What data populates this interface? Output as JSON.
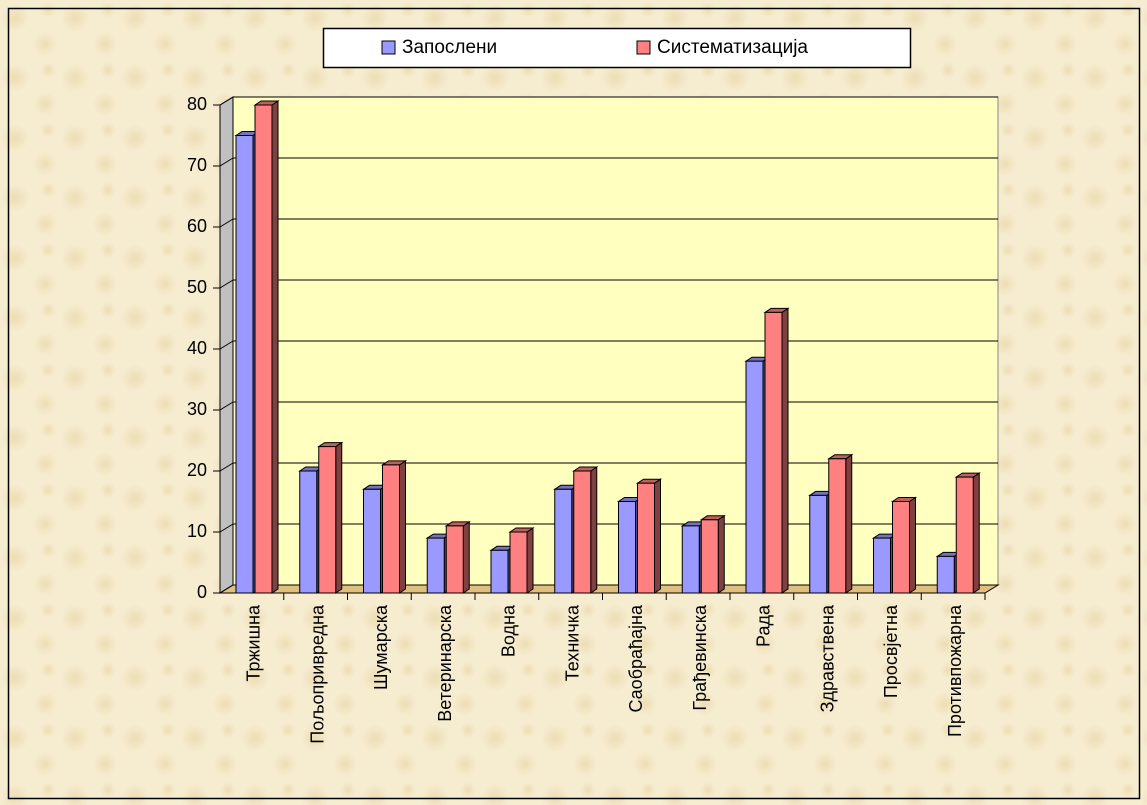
{
  "chart_data": {
    "type": "bar",
    "categories": [
      "Тржишна",
      "Пољопривредна",
      "Шумарска",
      "Ветеринарска",
      "Водна",
      "Техничка",
      "Саобраћајна",
      "Грађевинска",
      "Рада",
      "Здравствена",
      "Просвјетна",
      "Противпожарна"
    ],
    "series": [
      {
        "name": "Запослени",
        "color": "#9999ff",
        "values": [
          75,
          20,
          17,
          9,
          7,
          17,
          15,
          11,
          38,
          16,
          9,
          6
        ]
      },
      {
        "name": "Систематизација",
        "color": "#ff8080",
        "values": [
          80,
          24,
          21,
          11,
          10,
          20,
          18,
          12,
          46,
          22,
          15,
          19
        ]
      }
    ],
    "ylim": [
      0,
      80
    ],
    "yticks": [
      0,
      10,
      20,
      30,
      40,
      50,
      60,
      70,
      80
    ],
    "grid": true,
    "legend": "top"
  }
}
